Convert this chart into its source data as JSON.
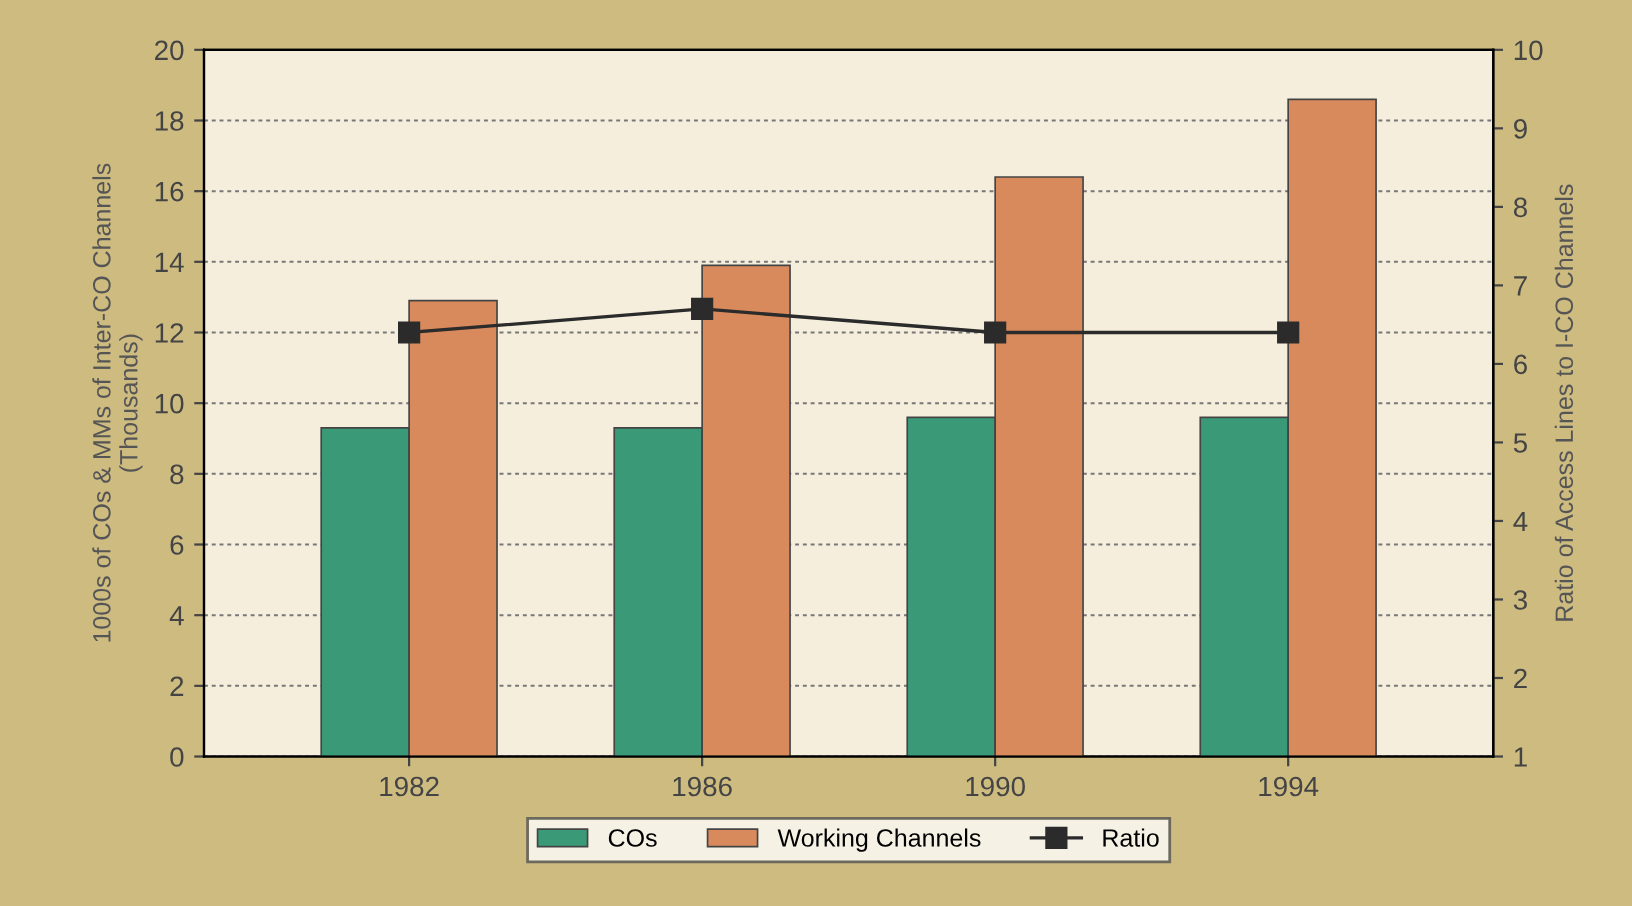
{
  "chart_data": {
    "type": "bar",
    "categories": [
      "1982",
      "1986",
      "1990",
      "1994"
    ],
    "ylabel": "1000s of COs & MMs of Inter-CO Channels\n(Thousands)",
    "y2label": "Ratio of Access Lines to I-CO Channels",
    "ylim": [
      0,
      20
    ],
    "yticks": [
      0,
      2,
      4,
      6,
      8,
      10,
      12,
      14,
      16,
      18,
      20
    ],
    "y2lim": [
      1,
      10
    ],
    "y2ticks": [
      1,
      2,
      3,
      4,
      5,
      6,
      7,
      8,
      9,
      10
    ],
    "grid": "y",
    "legend": "bottom",
    "series": [
      {
        "name": "COs",
        "color": "#3a9a78",
        "values": [
          9.3,
          9.3,
          9.6,
          9.6
        ]
      },
      {
        "name": "Working Channels",
        "color": "#d98a5c",
        "values": [
          12.9,
          13.9,
          16.4,
          18.6
        ]
      },
      {
        "name": "Ratio",
        "type": "line",
        "axis": "y2",
        "color": "#2b2b2b",
        "marker": "square",
        "values": [
          6.4,
          6.7,
          6.4,
          6.4
        ]
      }
    ]
  }
}
